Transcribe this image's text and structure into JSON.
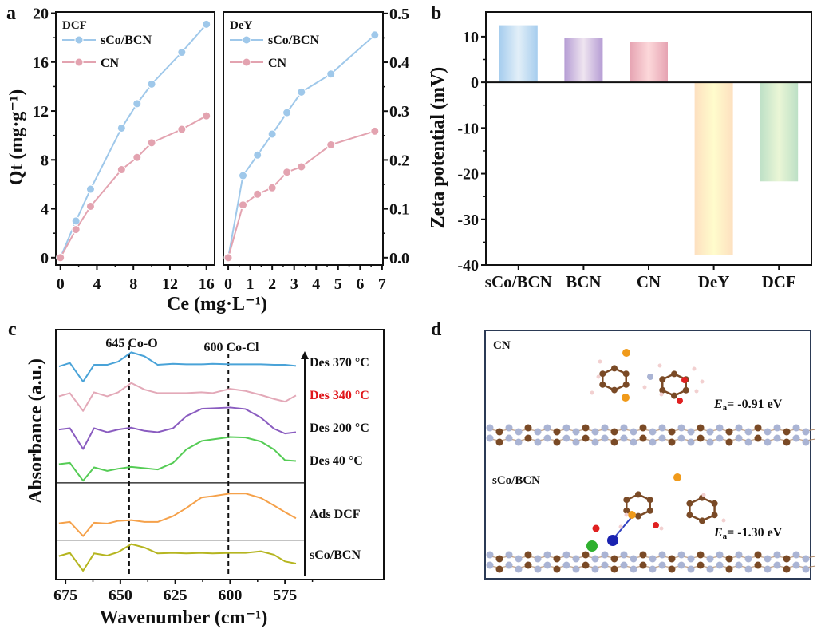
{
  "panel_labels": {
    "a": "a",
    "b": "b",
    "c": "c",
    "d": "d"
  },
  "colors": {
    "sCo/BCN": "#9fc8ea",
    "CN": "#e3a3b0",
    "axis": "#111111",
    "red_label": "#e0161b",
    "frame_d": "#2b3a55"
  },
  "chart_data": [
    {
      "id": "a-left",
      "type": "line",
      "xlabel": "Ce (mg·L⁻¹)",
      "ylabel": "Qt (mg·g⁻¹)",
      "inset_title": "DCF",
      "xlim": [
        -0.5,
        16.9
      ],
      "ylim": [
        -0.6,
        20.1
      ],
      "xticks": [
        0,
        4,
        8,
        12,
        16
      ],
      "yticks": [
        0,
        4,
        8,
        12,
        16,
        20
      ],
      "legend": "top-left",
      "series": [
        {
          "name": "sCo/BCN",
          "color": "#9fc8ea",
          "x": [
            0,
            1.7,
            3.3,
            6.7,
            8.4,
            10,
            13.3,
            16
          ],
          "y": [
            0,
            3.0,
            5.6,
            10.6,
            12.6,
            14.2,
            16.8,
            19.1
          ]
        },
        {
          "name": "CN",
          "color": "#e3a3b0",
          "x": [
            0,
            1.7,
            3.3,
            6.7,
            8.4,
            10,
            13.3,
            16
          ],
          "y": [
            0,
            2.3,
            4.2,
            7.2,
            8.2,
            9.4,
            10.5,
            11.6
          ]
        }
      ]
    },
    {
      "id": "a-right",
      "type": "line",
      "inset_title": "DeY",
      "xlim": [
        -0.22,
        7.04
      ],
      "ylim": [
        -0.015,
        0.503
      ],
      "xticks": [
        0,
        1,
        2,
        3,
        4,
        5,
        6,
        7
      ],
      "yticks": [
        "0.0",
        "0.1",
        "0.2",
        "0.3",
        "0.4",
        "0.5"
      ],
      "legend": "top-left",
      "series": [
        {
          "name": "sCo/BCN",
          "color": "#9fc8ea",
          "x": [
            0,
            0.67,
            1.33,
            2,
            2.67,
            3.33,
            4.67,
            6.67
          ],
          "y": [
            0,
            0.168,
            0.21,
            0.253,
            0.297,
            0.339,
            0.376,
            0.456
          ]
        },
        {
          "name": "CN",
          "color": "#e3a3b0",
          "x": [
            0,
            0.67,
            1.33,
            2,
            2.67,
            3.33,
            4.67,
            6.67
          ],
          "y": [
            0,
            0.108,
            0.13,
            0.143,
            0.175,
            0.186,
            0.231,
            0.259
          ]
        }
      ]
    },
    {
      "id": "b",
      "type": "bar",
      "ylabel": "Zeta potential (mV)",
      "categories": [
        "sCo/BCN",
        "BCN",
        "CN",
        "DeY",
        "DCF"
      ],
      "values": [
        12.5,
        9.8,
        8.8,
        -37.8,
        -21.7
      ],
      "bar_colors": [
        [
          "#a6cdee",
          "#e2eff8"
        ],
        [
          "#b59cd4",
          "#efe5f0"
        ],
        [
          "#e6a3b2",
          "#fcd8da"
        ],
        [
          "#fde0c0",
          "#fffccc"
        ],
        [
          "#bde0c6",
          "#eaf6d6"
        ]
      ],
      "ylim": [
        -40,
        15.4
      ],
      "yticks": [
        10,
        0,
        -10,
        -20,
        -30,
        -40
      ]
    },
    {
      "id": "c",
      "type": "line",
      "xlabel": "Wavenumber (cm⁻¹)",
      "ylabel": "Absorbance (a.u.)",
      "xlim": [
        679.4,
        530
      ],
      "ylim": [
        0.22,
        9.6
      ],
      "xticks": [
        675,
        650,
        625,
        600,
        575
      ],
      "reference_lines": [
        {
          "x": 646,
          "label": "645 Co-O"
        },
        {
          "x": 600.8,
          "label": "600 Co-Cl"
        }
      ],
      "dividers_y": [
        3.85,
        1.7
      ],
      "arrow_label": "increasing temperature",
      "x": [
        678,
        673,
        667,
        662,
        656,
        651,
        645,
        639,
        633,
        626,
        620,
        613,
        608,
        600,
        593,
        586,
        580,
        575,
        570
      ],
      "series": [
        {
          "name": "Des 370 °C",
          "color": "#4aa3d8",
          "label_color": "#111111",
          "y": [
            8.22,
            8.35,
            7.65,
            8.28,
            8.28,
            8.4,
            8.75,
            8.6,
            8.28,
            8.32,
            8.3,
            8.3,
            8.32,
            8.3,
            8.3,
            8.3,
            8.28,
            8.28,
            8.24
          ]
        },
        {
          "name": "Des 340 °C",
          "color": "#e3a9b8",
          "label_color": "#e0161b",
          "y": [
            7.1,
            7.22,
            6.55,
            7.25,
            7.1,
            7.25,
            7.6,
            7.35,
            7.22,
            7.22,
            7.22,
            7.25,
            7.22,
            7.38,
            7.3,
            7.15,
            7.0,
            6.9,
            7.13
          ]
        },
        {
          "name": "Des 200 °C",
          "color": "#8a5cc0",
          "label_color": "#111111",
          "y": [
            5.85,
            5.9,
            5.12,
            5.9,
            5.75,
            5.85,
            5.92,
            5.8,
            5.75,
            5.9,
            6.35,
            6.63,
            6.65,
            6.68,
            6.62,
            6.3,
            5.88,
            5.7,
            5.75
          ]
        },
        {
          "name": "Des 40 °C",
          "color": "#55cc55",
          "label_color": "#111111",
          "y": [
            4.55,
            4.6,
            3.93,
            4.43,
            4.3,
            4.38,
            4.45,
            4.4,
            4.35,
            4.6,
            5.1,
            5.42,
            5.48,
            5.57,
            5.55,
            5.4,
            5.1,
            4.7,
            4.67
          ]
        },
        {
          "name": "Ads DCF",
          "color": "#f5a14a",
          "label_color": "#111111",
          "y": [
            2.33,
            2.38,
            1.85,
            2.35,
            2.32,
            2.42,
            2.45,
            2.38,
            2.38,
            2.6,
            2.9,
            3.3,
            3.35,
            3.45,
            3.45,
            3.28,
            3.0,
            2.75,
            2.52
          ]
        },
        {
          "name": "sCo/BCN",
          "color": "#b5b520",
          "label_color": "#111111",
          "y": [
            1.1,
            1.22,
            0.55,
            1.2,
            1.12,
            1.25,
            1.55,
            1.42,
            1.2,
            1.22,
            1.2,
            1.22,
            1.2,
            1.22,
            1.22,
            1.28,
            1.15,
            0.9,
            0.82
          ]
        }
      ]
    }
  ],
  "panel_d": {
    "top_label": "CN",
    "top_energy": {
      "symbol": "E",
      "subscript": "a",
      "value": "= -0.91 eV"
    },
    "bottom_label": "sCo/BCN",
    "bottom_energy": {
      "symbol": "E",
      "subscript": "a",
      "value": "= -1.30 eV"
    },
    "atom_colors": {
      "C": "#7a4a26",
      "N": "#aab4d4",
      "H": "#f2d0d0",
      "Cl": "#f09a1a",
      "O": "#e02020",
      "Co": "#1a22b0",
      "B": "#2fb02f"
    }
  }
}
